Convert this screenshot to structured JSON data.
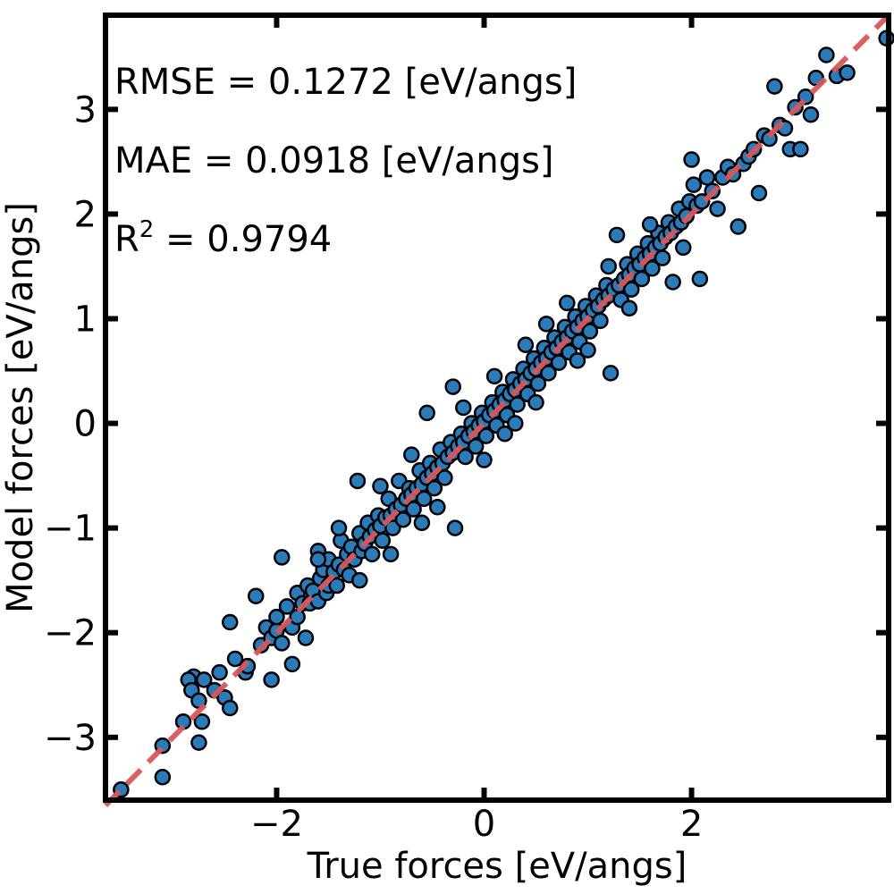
{
  "chart_data": {
    "type": "scatter",
    "xlabel": "True forces [eV/angs]",
    "ylabel": "Model forces [eV/angs]",
    "xlim": [
      -3.65,
      3.9
    ],
    "ylim": [
      -3.6,
      3.9
    ],
    "xticks": [
      {
        "value": -2,
        "label": "−2"
      },
      {
        "value": 0,
        "label": "0"
      },
      {
        "value": 2,
        "label": "2"
      }
    ],
    "yticks": [
      {
        "value": -3,
        "label": "−3"
      },
      {
        "value": -2,
        "label": "−2"
      },
      {
        "value": -1,
        "label": "−1"
      },
      {
        "value": 0,
        "label": "0"
      },
      {
        "value": 1,
        "label": "1"
      },
      {
        "value": 2,
        "label": "2"
      },
      {
        "value": 3,
        "label": "3"
      }
    ],
    "grid": false,
    "annotations": {
      "rmse": "RMSE = 0.1272 [eV/angs]",
      "mae": "MAE = 0.0918 [eV/angs]",
      "r2_prefix": "R",
      "r2_sup": "2",
      "r2_value": " = 0.9794"
    },
    "reference_line": {
      "style": "dashed",
      "color": "#d9585a",
      "from": [
        -3.65,
        -3.65
      ],
      "to": [
        3.9,
        3.9
      ]
    },
    "marker_color": "#2b7bba",
    "marker_edge": "#000000",
    "points": [
      [
        -3.5,
        -3.5
      ],
      [
        -3.1,
        -3.38
      ],
      [
        -3.1,
        -3.08
      ],
      [
        -2.9,
        -2.85
      ],
      [
        -2.8,
        -2.42
      ],
      [
        -2.85,
        -2.45
      ],
      [
        -2.82,
        -2.55
      ],
      [
        -2.75,
        -2.65
      ],
      [
        -2.75,
        -3.05
      ],
      [
        -2.72,
        -2.85
      ],
      [
        -2.7,
        -2.45
      ],
      [
        -2.6,
        -2.55
      ],
      [
        -2.55,
        -2.38
      ],
      [
        -2.5,
        -2.62
      ],
      [
        -2.45,
        -2.72
      ],
      [
        -2.45,
        -1.9
      ],
      [
        -2.4,
        -2.25
      ],
      [
        -2.3,
        -2.38
      ],
      [
        -2.28,
        -2.32
      ],
      [
        -2.2,
        -1.65
      ],
      [
        -2.15,
        -2.12
      ],
      [
        -2.1,
        -1.95
      ],
      [
        -2.05,
        -2.05
      ],
      [
        -2.05,
        -2.45
      ],
      [
        -2.0,
        -1.98
      ],
      [
        -2.0,
        -1.85
      ],
      [
        -1.95,
        -1.28
      ],
      [
        -1.95,
        -2.1
      ],
      [
        -1.9,
        -1.75
      ],
      [
        -1.85,
        -1.95
      ],
      [
        -1.85,
        -2.3
      ],
      [
        -1.8,
        -1.85
      ],
      [
        -1.8,
        -1.62
      ],
      [
        -1.75,
        -1.72
      ],
      [
        -1.72,
        -2.05
      ],
      [
        -1.7,
        -1.55
      ],
      [
        -1.68,
        -1.72
      ],
      [
        -1.65,
        -1.6
      ],
      [
        -1.6,
        -1.7
      ],
      [
        -1.6,
        -1.22
      ],
      [
        -1.58,
        -1.48
      ],
      [
        -1.55,
        -1.4
      ],
      [
        -1.52,
        -1.62
      ],
      [
        -1.5,
        -1.55
      ],
      [
        -1.5,
        -1.3
      ],
      [
        -1.45,
        -1.42
      ],
      [
        -1.42,
        -1.55
      ],
      [
        -1.4,
        -1.35
      ],
      [
        -1.38,
        -1.12
      ],
      [
        -1.35,
        -1.4
      ],
      [
        -1.32,
        -1.25
      ],
      [
        -1.3,
        -1.45
      ],
      [
        -1.28,
        -1.18
      ],
      [
        -1.25,
        -1.3
      ],
      [
        -1.22,
        -0.55
      ],
      [
        -1.2,
        -1.05
      ],
      [
        -1.18,
        -1.22
      ],
      [
        -1.15,
        -1.15
      ],
      [
        -1.12,
        -0.95
      ],
      [
        -1.1,
        -1.08
      ],
      [
        -1.08,
        -1.25
      ],
      [
        -1.05,
        -1.02
      ],
      [
        -1.02,
        -0.88
      ],
      [
        -1.0,
        -0.98
      ],
      [
        -0.98,
        -1.12
      ],
      [
        -0.95,
        -0.9
      ],
      [
        -0.92,
        -0.72
      ],
      [
        -0.9,
        -0.88
      ],
      [
        -0.88,
        -1.0
      ],
      [
        -0.85,
        -0.82
      ],
      [
        -0.82,
        -0.55
      ],
      [
        -0.8,
        -0.78
      ],
      [
        -0.78,
        -0.92
      ],
      [
        -0.75,
        -0.72
      ],
      [
        -0.72,
        -0.62
      ],
      [
        -0.7,
        -0.68
      ],
      [
        -0.68,
        -0.82
      ],
      [
        -0.65,
        -0.62
      ],
      [
        -0.62,
        -0.45
      ],
      [
        -0.6,
        -0.58
      ],
      [
        -0.58,
        -0.72
      ],
      [
        -0.55,
        -0.52
      ],
      [
        -0.52,
        -0.38
      ],
      [
        -0.5,
        -0.48
      ],
      [
        -0.48,
        -0.62
      ],
      [
        -0.45,
        -0.42
      ],
      [
        -0.42,
        -0.25
      ],
      [
        -0.4,
        -0.38
      ],
      [
        -0.38,
        -0.52
      ],
      [
        -0.35,
        -0.32
      ],
      [
        -0.32,
        -0.18
      ],
      [
        -0.3,
        -0.28
      ],
      [
        -0.28,
        -1.0
      ],
      [
        -0.25,
        -0.22
      ],
      [
        -0.22,
        -0.1
      ],
      [
        -0.2,
        -0.18
      ],
      [
        -0.18,
        -0.32
      ],
      [
        -0.15,
        -0.12
      ],
      [
        -0.12,
        0.0
      ],
      [
        -0.1,
        -0.08
      ],
      [
        -0.08,
        -0.22
      ],
      [
        -0.05,
        -0.02
      ],
      [
        -0.02,
        0.1
      ],
      [
        0.0,
        0.02
      ],
      [
        0.02,
        -0.12
      ],
      [
        0.05,
        0.08
      ],
      [
        0.08,
        0.2
      ],
      [
        0.1,
        0.12
      ],
      [
        0.12,
        -0.02
      ],
      [
        0.15,
        0.18
      ],
      [
        0.18,
        0.3
      ],
      [
        0.2,
        0.22
      ],
      [
        0.22,
        0.08
      ],
      [
        0.25,
        0.28
      ],
      [
        0.28,
        0.42
      ],
      [
        0.3,
        0.32
      ],
      [
        0.32,
        0.18
      ],
      [
        0.35,
        0.38
      ],
      [
        0.38,
        0.52
      ],
      [
        0.4,
        0.42
      ],
      [
        0.42,
        0.28
      ],
      [
        0.45,
        0.48
      ],
      [
        0.48,
        0.62
      ],
      [
        0.5,
        0.52
      ],
      [
        0.52,
        0.38
      ],
      [
        0.55,
        0.58
      ],
      [
        0.58,
        0.72
      ],
      [
        0.6,
        0.62
      ],
      [
        0.62,
        0.48
      ],
      [
        0.65,
        0.68
      ],
      [
        0.68,
        0.82
      ],
      [
        0.7,
        0.72
      ],
      [
        0.72,
        0.58
      ],
      [
        0.75,
        0.78
      ],
      [
        0.78,
        0.92
      ],
      [
        0.8,
        0.82
      ],
      [
        0.82,
        0.68
      ],
      [
        0.85,
        0.88
      ],
      [
        0.88,
        1.02
      ],
      [
        0.9,
        0.92
      ],
      [
        0.92,
        0.78
      ],
      [
        0.95,
        0.98
      ],
      [
        0.98,
        1.12
      ],
      [
        1.0,
        1.02
      ],
      [
        1.02,
        0.88
      ],
      [
        1.05,
        1.08
      ],
      [
        1.08,
        1.22
      ],
      [
        1.1,
        1.12
      ],
      [
        1.12,
        0.98
      ],
      [
        1.15,
        1.18
      ],
      [
        1.18,
        1.32
      ],
      [
        1.2,
        1.22
      ],
      [
        1.22,
        0.48
      ],
      [
        1.25,
        1.28
      ],
      [
        1.28,
        1.8
      ],
      [
        1.3,
        1.32
      ],
      [
        1.32,
        1.18
      ],
      [
        1.35,
        1.38
      ],
      [
        1.38,
        1.52
      ],
      [
        1.4,
        1.42
      ],
      [
        1.42,
        1.28
      ],
      [
        1.45,
        1.48
      ],
      [
        1.48,
        1.62
      ],
      [
        1.5,
        1.52
      ],
      [
        1.52,
        1.38
      ],
      [
        1.55,
        1.58
      ],
      [
        1.58,
        1.72
      ],
      [
        1.6,
        1.62
      ],
      [
        1.62,
        1.48
      ],
      [
        1.65,
        1.68
      ],
      [
        1.68,
        1.82
      ],
      [
        1.7,
        1.72
      ],
      [
        1.72,
        1.58
      ],
      [
        1.75,
        1.78
      ],
      [
        1.78,
        1.92
      ],
      [
        1.8,
        1.82
      ],
      [
        1.82,
        1.35
      ],
      [
        1.85,
        1.88
      ],
      [
        1.88,
        2.05
      ],
      [
        1.9,
        1.92
      ],
      [
        1.92,
        1.68
      ],
      [
        1.95,
        1.98
      ],
      [
        1.98,
        2.12
      ],
      [
        2.0,
        2.52
      ],
      [
        2.02,
        2.28
      ],
      [
        2.05,
        2.08
      ],
      [
        2.08,
        1.38
      ],
      [
        2.1,
        2.12
      ],
      [
        2.15,
        2.35
      ],
      [
        2.2,
        2.22
      ],
      [
        2.25,
        2.05
      ],
      [
        2.3,
        2.35
      ],
      [
        2.35,
        2.45
      ],
      [
        2.4,
        2.38
      ],
      [
        2.45,
        1.88
      ],
      [
        2.5,
        2.48
      ],
      [
        2.55,
        2.55
      ],
      [
        2.6,
        2.62
      ],
      [
        2.65,
        2.2
      ],
      [
        2.7,
        2.75
      ],
      [
        2.75,
        2.72
      ],
      [
        2.8,
        3.22
      ],
      [
        2.85,
        2.85
      ],
      [
        2.9,
        2.82
      ],
      [
        2.95,
        2.62
      ],
      [
        3.0,
        3.02
      ],
      [
        3.05,
        2.62
      ],
      [
        3.1,
        3.12
      ],
      [
        3.15,
        2.95
      ],
      [
        3.2,
        3.3
      ],
      [
        3.3,
        3.52
      ],
      [
        3.4,
        3.32
      ],
      [
        3.5,
        3.35
      ],
      [
        3.88,
        3.68
      ],
      [
        -0.55,
        0.1
      ],
      [
        -0.3,
        0.35
      ],
      [
        0.2,
        -0.1
      ],
      [
        -0.7,
        -0.3
      ],
      [
        0.6,
        0.95
      ],
      [
        -1.0,
        -0.6
      ],
      [
        1.0,
        0.7
      ],
      [
        -1.4,
        -1.0
      ],
      [
        1.4,
        1.1
      ],
      [
        0.4,
        0.75
      ],
      [
        -0.2,
        0.15
      ],
      [
        0.8,
        1.15
      ],
      [
        -0.9,
        -1.25
      ],
      [
        0.1,
        0.45
      ],
      [
        -1.6,
        -1.3
      ],
      [
        1.6,
        1.9
      ],
      [
        0.0,
        -0.35
      ],
      [
        -0.45,
        -0.8
      ],
      [
        0.5,
        0.2
      ],
      [
        1.2,
        1.5
      ],
      [
        -1.2,
        -1.5
      ],
      [
        0.3,
        0.0
      ],
      [
        -0.6,
        -0.95
      ],
      [
        0.9,
        0.6
      ]
    ]
  }
}
